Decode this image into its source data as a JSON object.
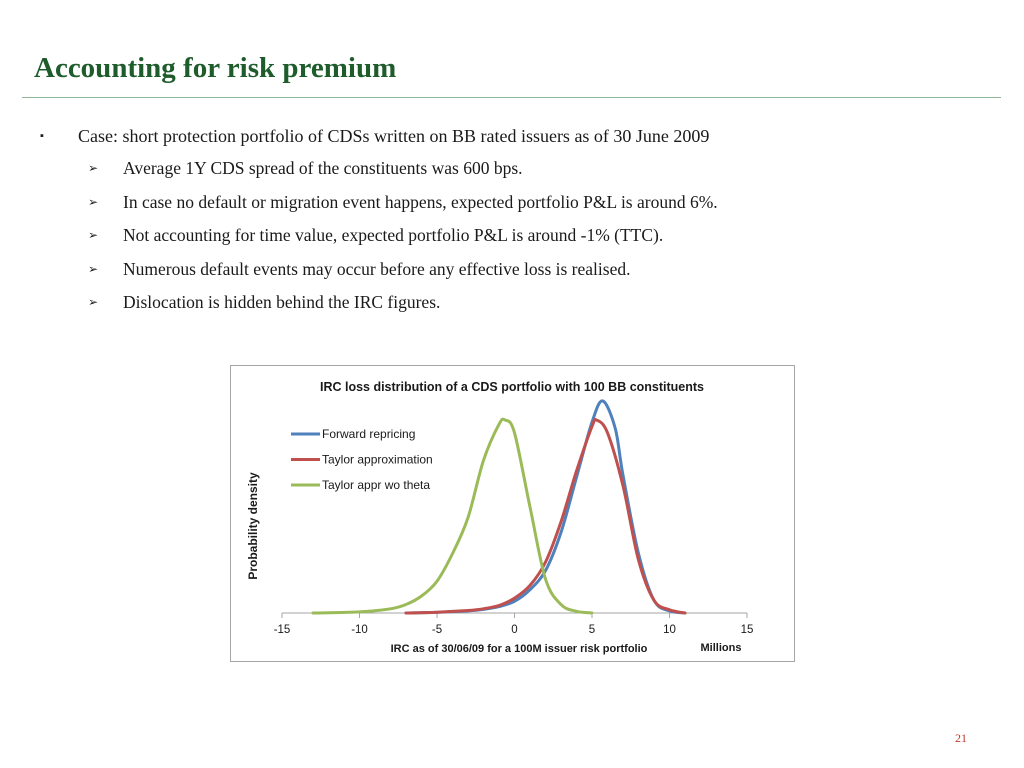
{
  "slide": {
    "title": "Accounting for risk premium",
    "page_number": "21"
  },
  "bullets": {
    "main": "Case: short protection portfolio of CDSs written on BB rated issuers as of 30 June 2009",
    "main_marker": "▪",
    "sub_marker": "➢",
    "sub": [
      "Average 1Y CDS spread of the constituents was 600 bps.",
      "In case no default or migration event happens, expected portfolio P&L is around 6%.",
      "Not accounting for time value, expected portfolio P&L is around -1% (TTC).",
      "Numerous default events may occur before any effective loss is realised.",
      "Dislocation is hidden behind the IRC figures."
    ]
  },
  "chart_data": {
    "type": "line",
    "title": "IRC loss distribution of a CDS portfolio with 100 BB constituents",
    "xlabel": "IRC as of 30/06/09 for a 100M issuer risk portfolio",
    "x_unit_label": "Millions",
    "ylabel": "Probability density",
    "xlim": [
      -15,
      15
    ],
    "ylim": [
      0,
      1
    ],
    "x_ticks": [
      "-15",
      "-10",
      "-5",
      "0",
      "5",
      "10",
      "15"
    ],
    "grid": false,
    "legend_position": "top-left",
    "series": [
      {
        "name": "Forward repricing",
        "color": "#4f81bd",
        "x": [
          -7,
          -5,
          -3,
          -2,
          -1,
          0,
          1,
          2,
          3,
          4,
          5,
          5.7,
          6.5,
          7,
          8,
          9,
          10,
          11
        ],
        "y": [
          0.0,
          0.003,
          0.01,
          0.017,
          0.03,
          0.055,
          0.11,
          0.2,
          0.38,
          0.64,
          0.9,
          1.0,
          0.87,
          0.65,
          0.28,
          0.06,
          0.01,
          0.0
        ]
      },
      {
        "name": "Taylor approximation",
        "color": "#c0504d",
        "x": [
          -7,
          -5,
          -3,
          -2,
          -1,
          0,
          1,
          2,
          3,
          4,
          5,
          5.3,
          6,
          7,
          8,
          9,
          10,
          11
        ],
        "y": [
          0.0,
          0.004,
          0.012,
          0.02,
          0.035,
          0.07,
          0.13,
          0.24,
          0.43,
          0.67,
          0.88,
          0.91,
          0.85,
          0.6,
          0.25,
          0.06,
          0.015,
          0.0
        ]
      },
      {
        "name": "Taylor appr wo theta",
        "color": "#9bbb59",
        "x": [
          -13,
          -10,
          -8,
          -7,
          -6,
          -5,
          -4,
          -3,
          -2,
          -1,
          -0.6,
          0,
          1,
          2,
          3,
          4,
          5
        ],
        "y": [
          0.0,
          0.005,
          0.02,
          0.04,
          0.08,
          0.15,
          0.28,
          0.45,
          0.72,
          0.89,
          0.91,
          0.85,
          0.5,
          0.16,
          0.04,
          0.008,
          0.0
        ]
      }
    ]
  }
}
